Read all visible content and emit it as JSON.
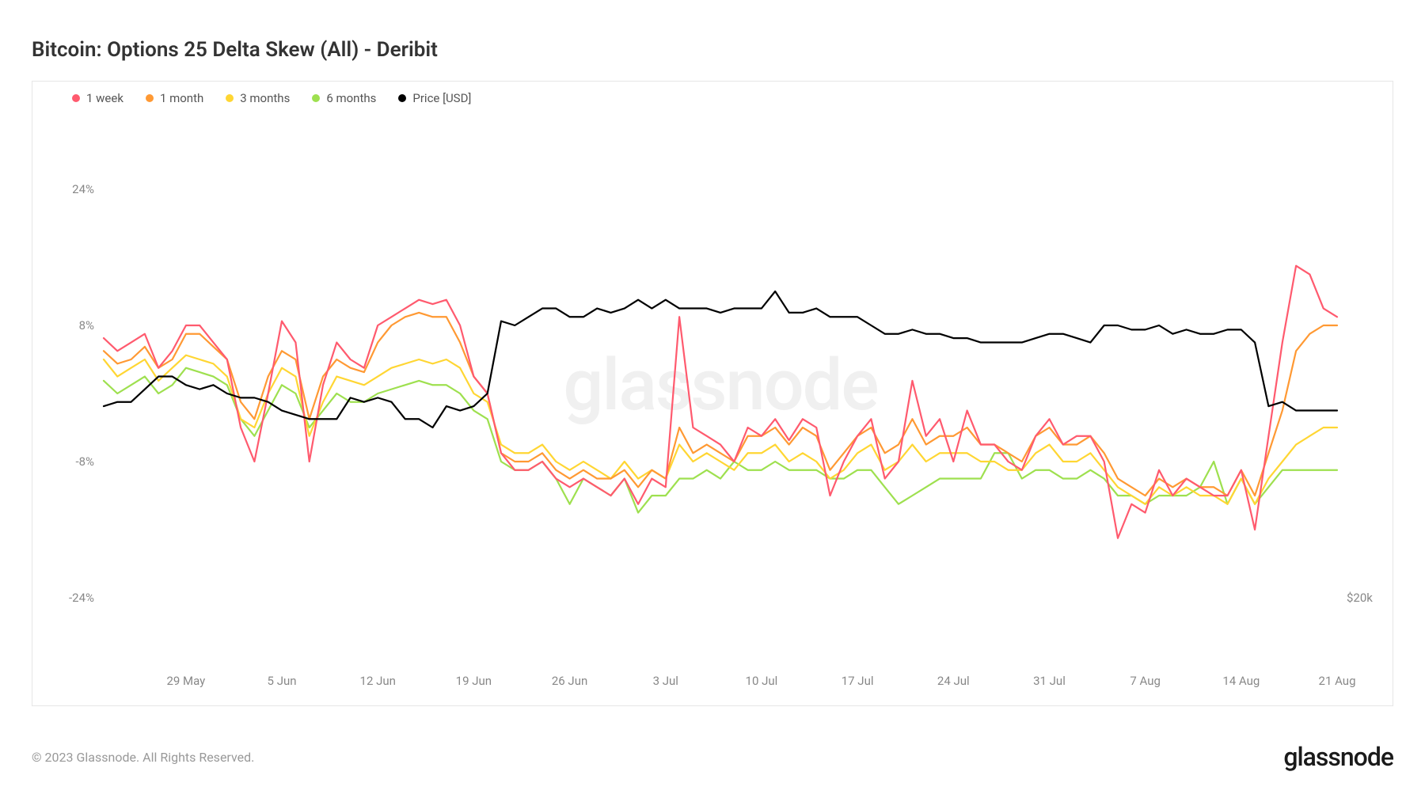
{
  "chart": {
    "title": "Bitcoin: Options 25 Delta Skew (All) - Deribit",
    "type": "line",
    "watermark": "glassnode",
    "background_color": "#ffffff",
    "border_color": "#e6e6e6",
    "axis_label_color": "#888888",
    "axis_label_fontsize": 15,
    "title_fontsize": 26,
    "title_color": "#333333",
    "line_width": 2.2,
    "y_axis": {
      "min": -32,
      "max": 32,
      "ticks": [
        {
          "value": 24,
          "label": "24%"
        },
        {
          "value": 8,
          "label": "8%"
        },
        {
          "value": -8,
          "label": "-8%"
        },
        {
          "value": -24,
          "label": "-24%"
        }
      ]
    },
    "y2_axis": {
      "ticks": [
        {
          "at_y_value": -24,
          "label": "$20k"
        }
      ]
    },
    "x_axis": {
      "n_points": 91,
      "tick_labels": [
        "29 May",
        "5 Jun",
        "12 Jun",
        "19 Jun",
        "26 Jun",
        "3 Jul",
        "10 Jul",
        "17 Jul",
        "24 Jul",
        "31 Jul",
        "7 Aug",
        "14 Aug",
        "21 Aug"
      ],
      "tick_indices": [
        6,
        13,
        20,
        27,
        34,
        41,
        48,
        55,
        62,
        69,
        76,
        83,
        90
      ]
    },
    "legend": [
      {
        "label": "1 week",
        "color": "#ff5a6e"
      },
      {
        "label": "1 month",
        "color": "#ff9933"
      },
      {
        "label": "3 months",
        "color": "#ffd633"
      },
      {
        "label": "6 months",
        "color": "#9ee04f"
      },
      {
        "label": "Price [USD]",
        "color": "#000000"
      }
    ],
    "series": {
      "one_week": {
        "color": "#ff5a6e",
        "values": [
          6.5,
          5,
          6,
          7,
          3,
          5,
          8,
          8,
          6,
          4,
          -4,
          -8,
          0,
          8.5,
          6,
          -8,
          1,
          6,
          4,
          3,
          8,
          9,
          10,
          11,
          10.5,
          11,
          8,
          2,
          0,
          -7,
          -9,
          -9,
          -8,
          -10,
          -11,
          -10,
          -11,
          -12,
          -10,
          -13,
          -10,
          -11,
          9,
          -4,
          -5,
          -6,
          -8,
          -4,
          -5,
          -3,
          -5.5,
          -3,
          -4,
          -12,
          -8,
          -5,
          -3,
          -10,
          -8,
          1.5,
          -5,
          -3,
          -8,
          -2,
          -6,
          -6,
          -8,
          -9,
          -5,
          -3,
          -6,
          -5,
          -5,
          -8,
          -17,
          -13,
          -14,
          -9,
          -12,
          -10,
          -11,
          -12,
          -12,
          -9,
          -16,
          -5,
          6,
          15,
          14,
          10,
          9
        ]
      },
      "one_month": {
        "color": "#ff9933",
        "values": [
          5,
          3.5,
          4,
          5.5,
          3,
          4,
          7,
          7,
          5.5,
          4,
          -1,
          -3,
          2,
          5,
          4,
          -3,
          2,
          4,
          3,
          2.5,
          6,
          8,
          9,
          9.5,
          9,
          9,
          6,
          2,
          0,
          -7,
          -8,
          -8,
          -7,
          -9,
          -10,
          -9,
          -10,
          -10,
          -9,
          -11,
          -9,
          -10,
          -4,
          -7,
          -6,
          -7,
          -8,
          -5,
          -5,
          -4,
          -6,
          -4,
          -5,
          -9,
          -7,
          -5,
          -4,
          -7,
          -6,
          -3,
          -6,
          -5,
          -5,
          -4,
          -6,
          -6,
          -7,
          -8,
          -5,
          -4,
          -6,
          -6,
          -5,
          -7,
          -10,
          -11,
          -12,
          -10,
          -11,
          -10,
          -11,
          -11,
          -12,
          -9,
          -12,
          -7,
          -2,
          5,
          7,
          8,
          8
        ]
      },
      "three_months": {
        "color": "#ffd633",
        "values": [
          4,
          2,
          3,
          4,
          1.5,
          3,
          4.5,
          4,
          3.5,
          2,
          -3,
          -4,
          0,
          3,
          2,
          -5,
          -1,
          2,
          1.5,
          1,
          2,
          3,
          3.5,
          4,
          3.5,
          4,
          3,
          0,
          -1,
          -6,
          -7,
          -7,
          -6,
          -8,
          -9,
          -8,
          -9,
          -10,
          -8,
          -10,
          -9,
          -10,
          -6,
          -8,
          -7,
          -8,
          -9,
          -7,
          -7,
          -6,
          -8,
          -7,
          -8,
          -10,
          -9,
          -7,
          -6,
          -9,
          -8,
          -6,
          -8,
          -7,
          -7,
          -7,
          -8,
          -8,
          -9,
          -9,
          -7,
          -6,
          -8,
          -8,
          -7,
          -9,
          -11,
          -12,
          -13,
          -11,
          -12,
          -11,
          -12,
          -12,
          -13,
          -10,
          -13,
          -10,
          -8,
          -6,
          -5,
          -4,
          -4
        ]
      },
      "six_months": {
        "color": "#9ee04f",
        "values": [
          1.5,
          0,
          1,
          2,
          0,
          1,
          3,
          2.5,
          2,
          1,
          -3,
          -5,
          -2,
          1,
          0,
          -4,
          -2,
          0,
          -1,
          -1,
          0,
          0.5,
          1,
          1.5,
          1,
          1,
          0,
          -2,
          -3,
          -8,
          -9,
          -9,
          -8,
          -10,
          -13,
          -10,
          -11,
          -12,
          -10,
          -14,
          -12,
          -12,
          -10,
          -10,
          -9,
          -10,
          -8,
          -9,
          -9,
          -8,
          -9,
          -9,
          -9,
          -10,
          -10,
          -9,
          -9,
          -11,
          -13,
          -12,
          -11,
          -10,
          -10,
          -10,
          -10,
          -7,
          -7,
          -10,
          -9,
          -9,
          -10,
          -10,
          -9,
          -10,
          -12,
          -12,
          -13,
          -12,
          -12,
          -12,
          -11,
          -8,
          -13,
          -10,
          -13,
          -11,
          -9,
          -9,
          -9,
          -9,
          -9
        ]
      },
      "price": {
        "color": "#000000",
        "values": [
          -1.5,
          -1,
          -1,
          0.5,
          2,
          2,
          1,
          0.5,
          1,
          0,
          -0.5,
          -0.5,
          -1,
          -2,
          -2.5,
          -3,
          -3,
          -3,
          -0.5,
          -1,
          -0.5,
          -1,
          -3,
          -3,
          -4,
          -1.5,
          -2,
          -1.5,
          0,
          8.5,
          8,
          9,
          10,
          10,
          9,
          9,
          10,
          9.5,
          10,
          11,
          10,
          11,
          10,
          10,
          10,
          9.5,
          10,
          10,
          10,
          12,
          9.5,
          9.5,
          10,
          9,
          9,
          9,
          8,
          7,
          7,
          7.5,
          7,
          7,
          6.5,
          6.5,
          6,
          6,
          6,
          6,
          6.5,
          7,
          7,
          6.5,
          6,
          8,
          8,
          7.5,
          7.5,
          8,
          7,
          7.5,
          7,
          7,
          7.5,
          7.5,
          6,
          -1.5,
          -1,
          -2,
          -2,
          -2,
          -2
        ]
      }
    }
  },
  "footer": {
    "copyright": "© 2023 Glassnode. All Rights Reserved.",
    "brand": "glassnode"
  }
}
